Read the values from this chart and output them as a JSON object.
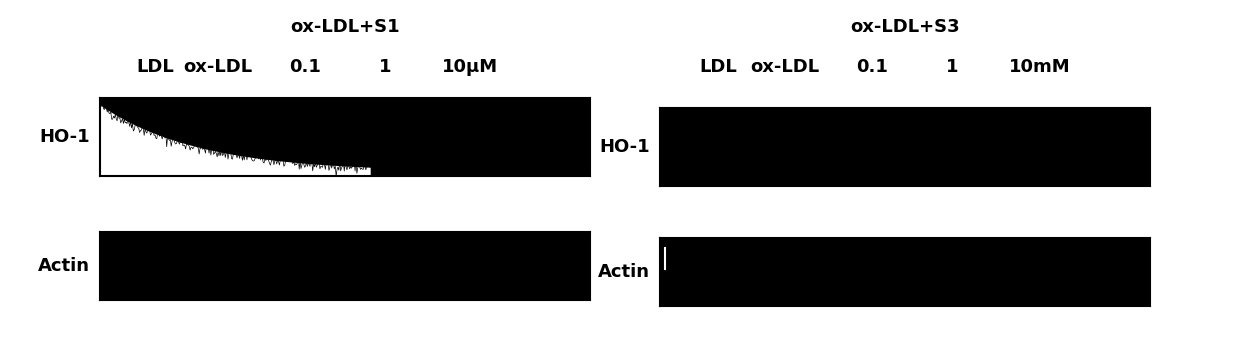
{
  "bg_color": "#ffffff",
  "panel_bg": "#000000",
  "fig_width": 12.4,
  "fig_height": 3.52,
  "left_title": "ox-LDL+S1",
  "right_title": "ox-LDL+S3",
  "left_col_labels": [
    "LDL",
    "ox-LDL",
    "0.1",
    "1",
    "10μM"
  ],
  "right_col_labels": [
    "LDL",
    "ox-LDL",
    "0.1",
    "1",
    "10mM"
  ],
  "row_labels": [
    "HO-1",
    "Actin"
  ],
  "label_fontsize": 13,
  "title_fontsize": 13
}
